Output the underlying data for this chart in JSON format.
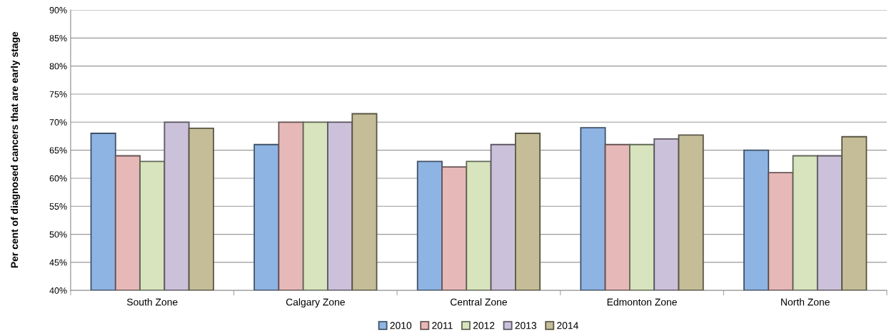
{
  "chart_data": {
    "type": "bar",
    "ylabel": "Per cent of diagnosed cancers that are early stage",
    "categories": [
      "South Zone",
      "Calgary Zone",
      "Central Zone",
      "Edmonton Zone",
      "North Zone"
    ],
    "series": [
      {
        "name": "2010",
        "color": "#8eb4e3",
        "values": [
          68,
          66,
          63,
          69,
          65
        ]
      },
      {
        "name": "2011",
        "color": "#e6b9b8",
        "values": [
          64,
          70,
          62,
          66,
          61
        ]
      },
      {
        "name": "2012",
        "color": "#d7e4bd",
        "values": [
          63,
          70,
          63,
          66,
          64
        ]
      },
      {
        "name": "2013",
        "color": "#ccc1da",
        "values": [
          70,
          70,
          66,
          67,
          64
        ]
      },
      {
        "name": "2014",
        "color": "#c4bd97",
        "values": [
          68.9,
          71.5,
          68,
          67.7,
          67.4
        ]
      }
    ],
    "ylim": [
      40,
      90
    ],
    "yticks": [
      {
        "value": 40,
        "label": "40%"
      },
      {
        "value": 45,
        "label": "45%"
      },
      {
        "value": 50,
        "label": "50%"
      },
      {
        "value": 55,
        "label": "55%"
      },
      {
        "value": 60,
        "label": "60%"
      },
      {
        "value": 65,
        "label": "65%"
      },
      {
        "value": 70,
        "label": "70%"
      },
      {
        "value": 75,
        "label": "75%"
      },
      {
        "value": 80,
        "label": "80%"
      },
      {
        "value": 85,
        "label": "85%"
      },
      {
        "value": 90,
        "label": "90%"
      }
    ],
    "grid": "y",
    "legend": "bottom"
  }
}
